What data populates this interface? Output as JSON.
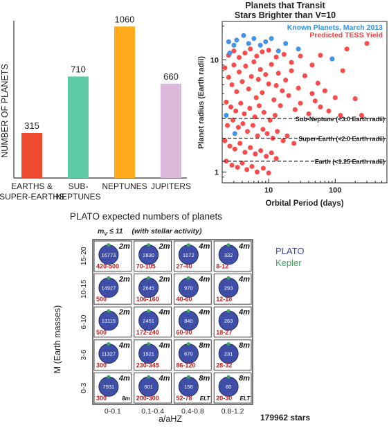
{
  "chart_data": [
    {
      "type": "bar",
      "ylabel": "NUMBER OF PLANETS",
      "categories": [
        "EARTHS &\nSUPER-EARTHS",
        "SUB-\nNEPTUNES",
        "NEPTUNES",
        "JUPITERS"
      ],
      "values": [
        315,
        710,
        1060,
        660
      ],
      "value_labels": [
        "315",
        "710",
        "1060",
        "660"
      ],
      "colors": [
        "#ee4a2f",
        "#5cc9a7",
        "#ffaa1d",
        "#d9b8d9"
      ],
      "ylim": [
        0,
        1100
      ]
    },
    {
      "type": "scatter",
      "title": "Planets that Transit\nStars Brighter than V=10",
      "xlabel": "Orbital Period (days)",
      "ylabel": "Planet radius (Earth radii)",
      "xscale": "log",
      "yscale": "log",
      "xlim": [
        2,
        600
      ],
      "ylim": [
        0.8,
        22
      ],
      "xticks": [
        10,
        100
      ],
      "xtick_labels": [
        "10",
        "100"
      ],
      "yticks": [
        1,
        10
      ],
      "ytick_labels": [
        "1",
        "10"
      ],
      "legend": [
        "Known Planets, March 2013",
        "Predicted TESS Yield"
      ],
      "legend_position": "top-right",
      "series": [
        {
          "name": "Known Planets, March 2013",
          "color": "#3a96f0",
          "points": [
            [
              2.5,
              14.5
            ],
            [
              3.0,
              13.5
            ],
            [
              3.3,
              15
            ],
            [
              4.2,
              16.5
            ],
            [
              5.0,
              14
            ],
            [
              6.0,
              15.5
            ],
            [
              7.5,
              13.5
            ],
            [
              9.0,
              14.5
            ],
            [
              11,
              15.5
            ],
            [
              14,
              12
            ],
            [
              18,
              14
            ],
            [
              28,
              12.5
            ],
            [
              90,
              10.2
            ],
            [
              3.1,
              2.2
            ],
            [
              2.3,
              3.2
            ],
            [
              2.6,
              11.5
            ]
          ]
        },
        {
          "name": "Predicted TESS Yield",
          "color": "#ff4a4a",
          "points": [
            [
              2.2,
              8.5
            ],
            [
              2.5,
              7
            ],
            [
              2.8,
              6
            ],
            [
              3.0,
              9
            ],
            [
              3.3,
              5.2
            ],
            [
              3.6,
              7.8
            ],
            [
              4.0,
              6.4
            ],
            [
              4.5,
              8.8
            ],
            [
              5.0,
              5.5
            ],
            [
              5.5,
              7.1
            ],
            [
              6.0,
              9.6
            ],
            [
              6.5,
              4.6
            ],
            [
              7.0,
              6.7
            ],
            [
              7.5,
              8.2
            ],
            [
              8.0,
              5.1
            ],
            [
              9.0,
              7.4
            ],
            [
              10,
              6.1
            ],
            [
              11,
              9.1
            ],
            [
              12,
              4.4
            ],
            [
              13,
              5.9
            ],
            [
              14,
              7.6
            ],
            [
              15,
              3.9
            ],
            [
              16,
              5.3
            ],
            [
              18,
              6.6
            ],
            [
              20,
              4.8
            ],
            [
              22,
              8.0
            ],
            [
              25,
              3.6
            ],
            [
              28,
              5.6
            ],
            [
              30,
              4.1
            ],
            [
              35,
              7.2
            ],
            [
              40,
              3.3
            ],
            [
              45,
              5.0
            ],
            [
              50,
              4.3
            ],
            [
              55,
              6.2
            ],
            [
              60,
              3.8
            ],
            [
              70,
              5.3
            ],
            [
              80,
              3.5
            ],
            [
              100,
              4.6
            ],
            [
              120,
              3.2
            ],
            [
              2.3,
              4.2
            ],
            [
              2.7,
              3.8
            ],
            [
              3.2,
              3.5
            ],
            [
              3.8,
              4.1
            ],
            [
              4.3,
              3.3
            ],
            [
              5.2,
              3.7
            ],
            [
              6.2,
              3.1
            ],
            [
              7.2,
              3.9
            ],
            [
              8.5,
              3.4
            ],
            [
              10.5,
              2.9
            ],
            [
              12.5,
              3.2
            ],
            [
              2.4,
              2.6
            ],
            [
              2.9,
              2.9
            ],
            [
              3.5,
              2.5
            ],
            [
              4.1,
              2.7
            ],
            [
              4.8,
              2.3
            ],
            [
              5.8,
              2.6
            ],
            [
              6.8,
              2.1
            ],
            [
              8.2,
              2.4
            ],
            [
              9.5,
              2.2
            ],
            [
              11.5,
              2.0
            ],
            [
              13.5,
              2.3
            ],
            [
              16.5,
              1.9
            ],
            [
              19,
              2.1
            ],
            [
              24,
              1.8
            ],
            [
              2.2,
              1.9
            ],
            [
              2.6,
              1.7
            ],
            [
              3.1,
              1.6
            ],
            [
              3.7,
              1.8
            ],
            [
              4.4,
              1.5
            ],
            [
              5.3,
              1.65
            ],
            [
              6.3,
              1.45
            ],
            [
              7.6,
              1.55
            ],
            [
              9.2,
              1.38
            ],
            [
              11,
              1.48
            ],
            [
              13,
              1.32
            ],
            [
              2.3,
              1.25
            ],
            [
              2.8,
              1.15
            ],
            [
              3.4,
              1.1
            ],
            [
              4.0,
              1.2
            ],
            [
              4.7,
              1.05
            ],
            [
              5.6,
              1.12
            ],
            [
              6.7,
              1.0
            ],
            [
              8.3,
              1.08
            ],
            [
              10,
              0.98
            ],
            [
              2.5,
              11
            ],
            [
              3.0,
              12
            ],
            [
              3.6,
              10.5
            ],
            [
              4.4,
              11.5
            ],
            [
              5.3,
              12.5
            ],
            [
              6.6,
              10.8
            ],
            [
              8.0,
              11.8
            ],
            [
              10,
              12.2
            ],
            [
              13,
              10.6
            ],
            [
              17,
              11.2
            ],
            [
              22,
              9.5
            ],
            [
              30,
              10.8
            ],
            [
              45,
              9.0
            ],
            [
              60,
              11.0
            ],
            [
              150,
              12.5
            ],
            [
              200,
              4.5
            ],
            [
              250,
              3.2
            ],
            [
              130,
              8.0
            ],
            [
              300,
              14.0
            ]
          ]
        }
      ],
      "annotations": [
        {
          "text": "Sub-Neptune (<3.0 Earth radii)",
          "y": 3.0
        },
        {
          "text": "Super-Earth (<2.0 Earth radii)",
          "y": 2.0
        },
        {
          "text": "Earth (<1.25 Earth radii)",
          "y": 1.25
        }
      ]
    },
    {
      "type": "table",
      "title": "PLATO expected numbers of planets",
      "subtitle_condition": "m",
      "subtitle_sub": "V",
      "subtitle_op": "≤ 11",
      "subtitle_note": "(with stellar activity)",
      "ylabel": "M (Earth masses)",
      "xlabel": "a/aHZ",
      "row_labels": [
        "15-20",
        "10-15",
        "6-10",
        "3-6",
        "0-3"
      ],
      "col_labels": [
        "0-0.1",
        "0.1-0.4",
        "0.4-0.8",
        "0.8-1.2"
      ],
      "legend": [
        {
          "label": "PLATO",
          "color": "#3a4a9a"
        },
        {
          "label": "Kepler",
          "color": "#3aa55a"
        }
      ],
      "footer": "179962 stars",
      "cells": [
        [
          {
            "plato": "16773",
            "kepler": "420-500",
            "mag": "2m"
          },
          {
            "plato": "2830",
            "kepler": "70-105",
            "mag": "2m"
          },
          {
            "plato": "1072",
            "kepler": "27-40",
            "mag": "4m"
          },
          {
            "plato": "332",
            "kepler": "8-12",
            "mag": "4m"
          }
        ],
        [
          {
            "plato": "14927",
            "kepler": "500",
            "mag": "2m"
          },
          {
            "plato": "2645",
            "kepler": "106-160",
            "mag": "2m"
          },
          {
            "plato": "970",
            "kepler": "40-60",
            "mag": "4m"
          },
          {
            "plato": "293",
            "kepler": "12-18",
            "mag": "4m"
          }
        ],
        [
          {
            "plato": "13115",
            "kepler": "500",
            "mag": "2m"
          },
          {
            "plato": "2451",
            "kepler": "172-240",
            "mag": "4m"
          },
          {
            "plato": "840",
            "kepler": "60-90",
            "mag": "4m"
          },
          {
            "plato": "263",
            "kepler": "18-27",
            "mag": "4m"
          }
        ],
        [
          {
            "plato": "11327",
            "kepler": "300",
            "mag": "4m"
          },
          {
            "plato": "1921",
            "kepler": "230-345",
            "mag": "4m"
          },
          {
            "plato": "670",
            "kepler": "86-120",
            "mag": "8m"
          },
          {
            "plato": "231",
            "kepler": "28-32",
            "mag": "8m"
          }
        ],
        [
          {
            "plato": "7931",
            "kepler": "300",
            "mag": "4m",
            "mag2": "8m"
          },
          {
            "plato": "601",
            "kepler": "200-300",
            "mag": "4m"
          },
          {
            "plato": "158",
            "kepler": "52-78",
            "mag": "8m",
            "mag2": "ELT"
          },
          {
            "plato": "60",
            "kepler": "20-30",
            "mag": "8m",
            "mag2": "ELT"
          }
        ]
      ]
    }
  ]
}
